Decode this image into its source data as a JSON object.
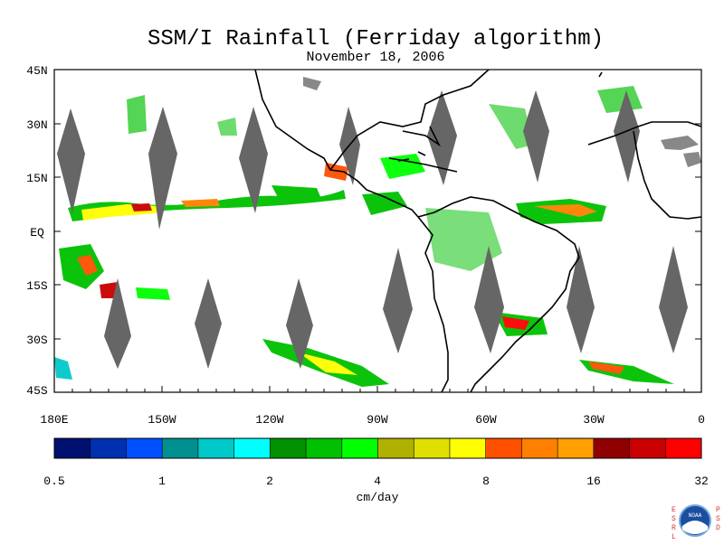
{
  "title": "SSM/I Rainfall (Ferriday algorithm)",
  "subtitle": "November 18, 2006",
  "map": {
    "lat_labels": [
      "45N",
      "30N",
      "15N",
      "EQ",
      "15S",
      "30S",
      "45S"
    ],
    "lon_labels": [
      "180E",
      "150W",
      "120W",
      "90W",
      "60W",
      "30W",
      "0"
    ]
  },
  "colorbar": {
    "unit_label": "cm/day",
    "tick_labels": [
      "0.5",
      "1",
      "2",
      "4",
      "8",
      "16",
      "32"
    ],
    "colors": [
      "#001070",
      "#0030b0",
      "#0050ff",
      "#009090",
      "#00c8c8",
      "#00ffff",
      "#009000",
      "#00c000",
      "#00ff00",
      "#b0b000",
      "#e0e000",
      "#ffff00",
      "#ff5000",
      "#ff8000",
      "#ffa000",
      "#900000",
      "#c80000",
      "#ff0000"
    ]
  },
  "logo": {
    "left_letters": "ESRL",
    "right_letters": "PSD",
    "badge_text": "NOAA"
  }
}
